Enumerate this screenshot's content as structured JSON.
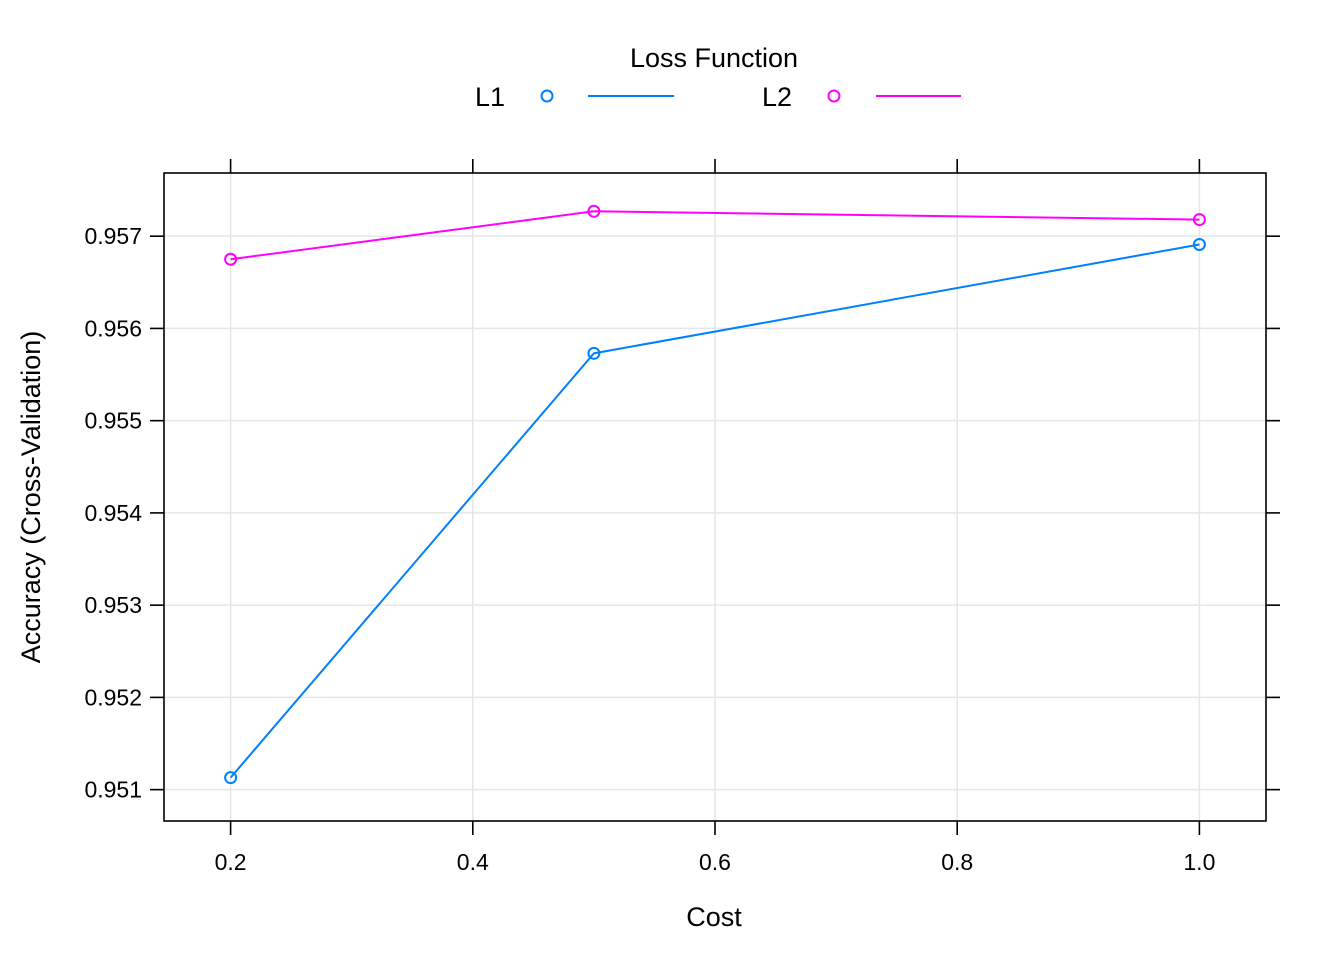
{
  "chart_data": {
    "type": "line",
    "xlabel": "Cost",
    "ylabel": "Accuracy (Cross-Validation)",
    "legend": {
      "title": "Loss Function",
      "placement": "top-center"
    },
    "xlim": [
      0.145,
      1.055
    ],
    "ylim": [
      0.95066,
      0.957685
    ],
    "x_ticks": [
      0.2,
      0.4,
      0.6,
      0.8,
      1.0
    ],
    "x_tick_labels": [
      "0.2",
      "0.4",
      "0.6",
      "0.8",
      "1.0"
    ],
    "y_ticks": [
      0.951,
      0.952,
      0.953,
      0.954,
      0.955,
      0.956,
      0.957
    ],
    "y_tick_labels": [
      "0.951",
      "0.952",
      "0.953",
      "0.954",
      "0.955",
      "0.956",
      "0.957"
    ],
    "grid": true,
    "series": [
      {
        "name": "L1",
        "color": "#0080ff",
        "x": [
          0.2,
          0.5,
          1.0
        ],
        "y": [
          0.95113,
          0.95573,
          0.95691
        ]
      },
      {
        "name": "L2",
        "color": "#ff00ff",
        "x": [
          0.2,
          0.5,
          1.0
        ],
        "y": [
          0.95675,
          0.95727,
          0.95718
        ]
      }
    ]
  }
}
